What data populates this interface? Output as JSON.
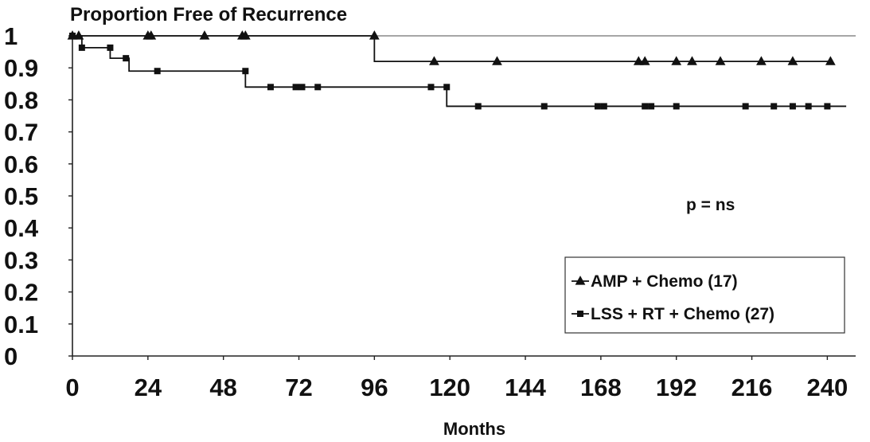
{
  "chart_data": {
    "type": "line",
    "ylabel": "Proportion Free of Recurrence",
    "xlabel": "Months",
    "xlim": [
      0,
      248
    ],
    "ylim": [
      0,
      1
    ],
    "x_ticks": [
      "0",
      "24",
      "48",
      "72",
      "96",
      "120",
      "144",
      "168",
      "192",
      "216",
      "240"
    ],
    "y_ticks": [
      "0",
      "0.1",
      "0.2",
      "0.3",
      "0.4",
      "0.5",
      "0.6",
      "0.7",
      "0.8",
      "0.9",
      "1"
    ],
    "annotation": "p = ns",
    "grid": false,
    "legend_position": "bottom-right",
    "series": [
      {
        "name": "AMP + Chemo (17)",
        "marker": "triangle",
        "step_x": [
          0,
          96,
          96,
          241
        ],
        "step_y": [
          1,
          1,
          0.92,
          0.92
        ],
        "censor_x": [
          0,
          2,
          24,
          25,
          42,
          54,
          55,
          96,
          115,
          135,
          180,
          182,
          192,
          197,
          206,
          219,
          229,
          241
        ],
        "censor_y": [
          1,
          1,
          1,
          1,
          1,
          1,
          1,
          1,
          0.92,
          0.92,
          0.92,
          0.92,
          0.92,
          0.92,
          0.92,
          0.92,
          0.92,
          0.92
        ]
      },
      {
        "name": "LSS + RT + Chemo (27)",
        "marker": "square",
        "step_x": [
          0,
          3,
          3,
          12,
          12,
          18,
          18,
          55,
          55,
          119,
          119,
          246
        ],
        "step_y": [
          1,
          1,
          0.963,
          0.963,
          0.93,
          0.93,
          0.89,
          0.89,
          0.84,
          0.84,
          0.78,
          0.78
        ],
        "censor_x": [
          0,
          3,
          12,
          17,
          27,
          55,
          63,
          71,
          73,
          78,
          114,
          119,
          129,
          150,
          167,
          169,
          182,
          184,
          192,
          214,
          223,
          229,
          234,
          240
        ],
        "censor_y": [
          1,
          0.963,
          0.963,
          0.93,
          0.89,
          0.89,
          0.84,
          0.84,
          0.84,
          0.84,
          0.84,
          0.84,
          0.78,
          0.78,
          0.78,
          0.78,
          0.78,
          0.78,
          0.78,
          0.78,
          0.78,
          0.78,
          0.78,
          0.78
        ]
      }
    ]
  }
}
